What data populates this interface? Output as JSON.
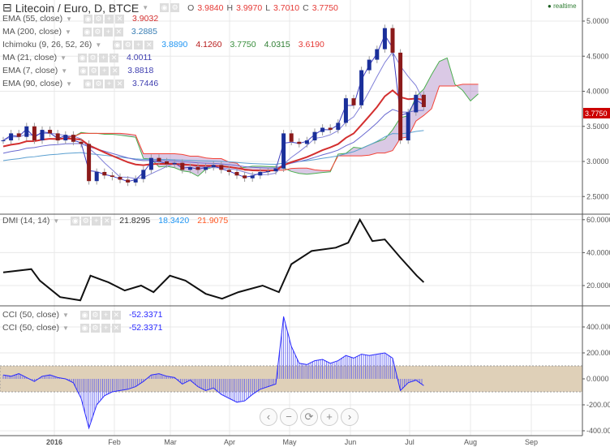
{
  "header": {
    "symbol": "Litecoin / Euro, D, BTCE",
    "o_label": "O",
    "o": "3.9840",
    "h_label": "H",
    "h": "3.9970",
    "l_label": "L",
    "l": "3.7010",
    "c_label": "C",
    "c": "3.7750",
    "realtime": "realtime"
  },
  "indicators": [
    {
      "label": "EMA (55, close)",
      "values": [
        "3.9032"
      ],
      "colors": [
        "#d32f2f"
      ]
    },
    {
      "label": "MA (200, close)",
      "values": [
        "3.2885"
      ],
      "colors": [
        "#3a7fb5"
      ]
    },
    {
      "label": "Ichimoku (9, 26, 52, 26)",
      "values": [
        "3.8890",
        "4.1260",
        "3.7750",
        "4.0315",
        "3.6190"
      ],
      "colors": [
        "#2196f3",
        "#b71c1c",
        "#388e3c",
        "#2e7d32",
        "#e53935"
      ]
    },
    {
      "label": "MA (21, close)",
      "values": [
        "4.0011"
      ],
      "colors": [
        "#3f3fb0"
      ]
    },
    {
      "label": "EMA (7, close)",
      "values": [
        "3.8818"
      ],
      "colors": [
        "#3f3fb0"
      ]
    },
    {
      "label": "EMA (90, close)",
      "values": [
        "3.7446"
      ],
      "colors": [
        "#3f3fb0"
      ]
    }
  ],
  "dmi_legend": {
    "label": "DMI (14, 14)",
    "values": [
      "21.8295",
      "18.3420",
      "21.9075"
    ],
    "colors": [
      "#333333",
      "#2196f3",
      "#ff5722"
    ]
  },
  "cci_legend": [
    {
      "label": "CCI (50, close)",
      "value": "-52.3371"
    },
    {
      "label": "CCI (50, close)",
      "value": "-52.3371"
    }
  ],
  "nav": [
    "‹",
    "−",
    "⟳",
    "+",
    "›"
  ],
  "chart_data": [
    {
      "type": "candlestick",
      "title": "Litecoin / Euro, D, BTCE",
      "step_days": 4,
      "close": [
        3.3,
        3.4,
        3.35,
        3.5,
        3.3,
        3.45,
        3.4,
        3.3,
        3.38,
        3.28,
        3.25,
        2.72,
        2.85,
        2.8,
        2.78,
        2.74,
        2.7,
        2.75,
        2.88,
        3.05,
        3.0,
        2.96,
        2.98,
        2.88,
        2.92,
        2.88,
        2.92,
        2.95,
        2.88,
        2.85,
        2.8,
        2.76,
        2.8,
        2.85,
        2.86,
        2.9,
        3.4,
        3.28,
        3.25,
        3.3,
        3.42,
        3.48,
        3.45,
        3.55,
        3.9,
        3.8,
        4.3,
        4.45,
        4.6,
        4.9,
        4.55,
        3.3,
        3.7,
        3.95,
        3.775
      ],
      "ylim": [
        2.4,
        5.3
      ],
      "yticks": [
        "5.0000",
        "4.5000",
        "4.0000",
        "3.5000",
        "3.0000",
        "2.5000"
      ],
      "ytick_values": [
        5,
        4.5,
        4,
        3.5,
        3,
        2.5
      ],
      "last_price": "3.7750",
      "xticks": [
        "2016",
        "Feb",
        "Mar",
        "Apr",
        "May",
        "Jun",
        "Jul",
        "Aug",
        "Sep"
      ]
    },
    {
      "type": "line",
      "name": "DMI",
      "points": [
        [
          0,
          28
        ],
        [
          3.6,
          30
        ],
        [
          4.7,
          23
        ],
        [
          7.3,
          13
        ],
        [
          9.9,
          11
        ],
        [
          11.2,
          26
        ],
        [
          13.5,
          22
        ],
        [
          15.6,
          17
        ],
        [
          17.7,
          20
        ],
        [
          19.3,
          16
        ],
        [
          21.4,
          26
        ],
        [
          23.4,
          23
        ],
        [
          26,
          15
        ],
        [
          28.1,
          12
        ],
        [
          30.2,
          16
        ],
        [
          33.3,
          20
        ],
        [
          35.4,
          16
        ],
        [
          37,
          33
        ],
        [
          39.6,
          41
        ],
        [
          42.7,
          43
        ],
        [
          44.3,
          46
        ],
        [
          45.8,
          60
        ],
        [
          47.4,
          47
        ],
        [
          49,
          48
        ],
        [
          51,
          37
        ],
        [
          53.1,
          26
        ],
        [
          54,
          22
        ]
      ],
      "ylim": [
        8,
        64
      ],
      "yticks": [
        "60.0000",
        "40.0000",
        "20.0000"
      ],
      "ytick_values": [
        60,
        40,
        20
      ]
    },
    {
      "type": "bar",
      "name": "CCI",
      "values": [
        30,
        20,
        40,
        10,
        -20,
        20,
        30,
        10,
        0,
        -30,
        -150,
        -380,
        -200,
        -130,
        -100,
        -90,
        -80,
        -60,
        -20,
        30,
        40,
        20,
        10,
        -40,
        -10,
        -60,
        -90,
        -70,
        -120,
        -150,
        -180,
        -170,
        -120,
        -80,
        -60,
        -40,
        480,
        250,
        120,
        110,
        140,
        150,
        120,
        140,
        180,
        160,
        190,
        180,
        190,
        200,
        160,
        -90,
        -30,
        -10,
        -52
      ],
      "band": [
        -100,
        100
      ],
      "yticks": [
        "400.0000",
        "200.0000",
        "0.0000",
        "-200.0000",
        "-400.0000"
      ],
      "ytick_values": [
        400,
        200,
        0,
        -200,
        -400
      ]
    }
  ]
}
